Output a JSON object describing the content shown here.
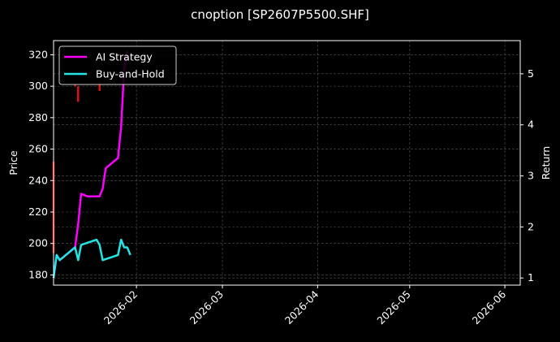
{
  "chart_data": {
    "type": "line",
    "title": "cnoption [SP2607P5500.SHF]",
    "xlabel": "",
    "ylabel": "Price",
    "ylabel_right": "Return",
    "ylim": [
      173.5,
      329
    ],
    "ylim_right": [
      0.86,
      5.65
    ],
    "y_ticks": [
      180,
      200,
      220,
      240,
      260,
      280,
      300,
      320
    ],
    "y_ticks_right": [
      1,
      2,
      3,
      4,
      5
    ],
    "x_ticks": [
      "2026-02",
      "2026-03",
      "2026-04",
      "2026-05",
      "2026-06"
    ],
    "grid": true,
    "legend_position": "upper left",
    "legend": [
      "AI Strategy",
      "Buy-and-Hold"
    ],
    "series": [
      {
        "name": "AI Strategy",
        "color": "#ff00ff",
        "axis": "right",
        "points": [
          [
            "2026-01-05",
            1.0
          ],
          [
            "2026-01-06",
            1.45
          ],
          [
            "2026-01-07",
            1.35
          ],
          [
            "2026-01-12",
            1.6
          ],
          [
            "2026-01-13",
            2.05
          ],
          [
            "2026-01-14",
            2.65
          ],
          [
            "2026-01-16",
            2.6
          ],
          [
            "2026-01-19",
            2.6
          ],
          [
            "2026-01-20",
            2.6
          ],
          [
            "2026-01-21",
            2.75
          ],
          [
            "2026-01-22",
            3.15
          ],
          [
            "2026-01-26",
            3.35
          ],
          [
            "2026-01-27",
            3.95
          ],
          [
            "2026-01-28",
            5.1
          ],
          [
            "2026-01-29",
            5.45
          ]
        ]
      },
      {
        "name": "Buy-and-Hold",
        "color": "#22e5e5",
        "axis": "right",
        "points": [
          [
            "2026-01-05",
            1.0
          ],
          [
            "2026-01-06",
            1.45
          ],
          [
            "2026-01-07",
            1.35
          ],
          [
            "2026-01-12",
            1.6
          ],
          [
            "2026-01-13",
            1.35
          ],
          [
            "2026-01-14",
            1.65
          ],
          [
            "2026-01-19",
            1.75
          ],
          [
            "2026-01-20",
            1.65
          ],
          [
            "2026-01-21",
            1.35
          ],
          [
            "2026-01-26",
            1.45
          ],
          [
            "2026-01-27",
            1.75
          ],
          [
            "2026-01-28",
            1.6
          ],
          [
            "2026-01-29",
            1.6
          ],
          [
            "2026-01-30",
            1.45
          ]
        ]
      }
    ],
    "price_bars": {
      "color": "#dd1111",
      "axis": "left",
      "bars": [
        [
          "2026-01-05",
          194,
          252
        ],
        [
          "2026-01-12",
          300,
          301
        ],
        [
          "2026-01-13",
          290,
          300
        ],
        [
          "2026-01-20",
          297,
          303
        ]
      ]
    }
  }
}
